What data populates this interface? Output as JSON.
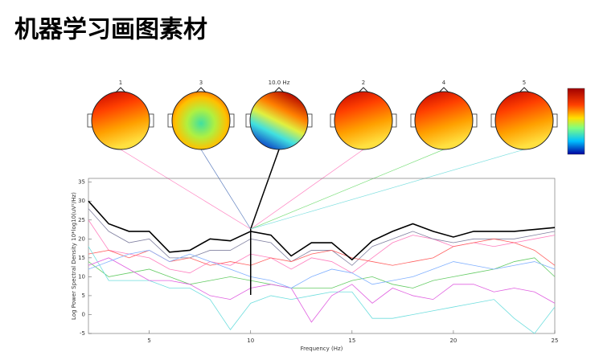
{
  "chart_data": {
    "type": "line",
    "title": "机器学习画图素材",
    "x_label": "Frequency (Hz)",
    "y_label": "Log Power Spectral Density 10*log10(uV²/Hz)",
    "topomap_labels": [
      "1",
      "3",
      "10.0 Hz",
      "2",
      "4",
      "5"
    ],
    "marker_x": 10,
    "x": [
      2,
      3,
      4,
      5,
      6,
      7,
      8,
      9,
      10,
      11,
      12,
      13,
      14,
      15,
      16,
      17,
      18,
      19,
      20,
      21,
      22,
      23,
      24,
      25
    ],
    "series": [
      {
        "color": "#ff7fbf",
        "values": [
          25,
          17,
          16,
          15,
          12,
          11,
          14,
          13,
          16,
          15,
          12,
          15,
          14,
          11,
          15,
          19,
          21,
          20,
          18,
          19,
          18,
          19,
          20,
          21
        ]
      },
      {
        "color": "#8080a0",
        "values": [
          28,
          22,
          19,
          20,
          15,
          15,
          17,
          17,
          20,
          19,
          14,
          17,
          17,
          13,
          18,
          20,
          22,
          20,
          19,
          20,
          20,
          20,
          21,
          22
        ]
      },
      {
        "color": "#ff6060",
        "values": [
          16,
          17,
          15,
          17,
          14,
          15,
          13,
          14,
          13,
          15,
          14,
          16,
          17,
          15,
          14,
          13,
          14,
          15,
          18,
          19,
          20,
          19,
          17,
          13
        ]
      },
      {
        "color": "#66cc66",
        "values": [
          14,
          10,
          11,
          12,
          10,
          8,
          9,
          10,
          9,
          8,
          7,
          7,
          7,
          9,
          10,
          8,
          7,
          9,
          10,
          11,
          12,
          14,
          15,
          10
        ]
      },
      {
        "color": "#6fdede",
        "values": [
          18,
          9,
          9,
          9,
          7,
          7,
          4,
          -4,
          3,
          5,
          4,
          5,
          6,
          6,
          -1,
          -1,
          0,
          1,
          2,
          3,
          4,
          -1,
          -5,
          2
        ]
      },
      {
        "color": "#e060e0",
        "values": [
          13,
          15,
          12,
          9,
          9,
          8,
          5,
          4,
          7,
          8,
          7,
          -2,
          5,
          8,
          3,
          7,
          5,
          4,
          8,
          8,
          6,
          7,
          6,
          3
        ]
      },
      {
        "color": "#80b0ff",
        "values": [
          12,
          14,
          16,
          17,
          14,
          16,
          14,
          12,
          10,
          9,
          7,
          10,
          12,
          11,
          8,
          9,
          10,
          12,
          14,
          13,
          12,
          13,
          14,
          12
        ]
      },
      {
        "color": "#000000",
        "values": [
          30,
          24,
          22,
          22,
          16.5,
          17,
          20,
          19.5,
          22,
          21,
          15.5,
          19,
          19,
          14.5,
          19.5,
          22,
          24,
          22,
          20.5,
          22,
          22,
          22,
          22.5,
          23
        ]
      }
    ],
    "xlim": [
      2,
      25
    ],
    "ylim": [
      -5,
      36
    ],
    "xticks": [
      5,
      10,
      15,
      20,
      25
    ],
    "yticks": [
      -5,
      0,
      5,
      10,
      15,
      20,
      25,
      30,
      35
    ]
  }
}
